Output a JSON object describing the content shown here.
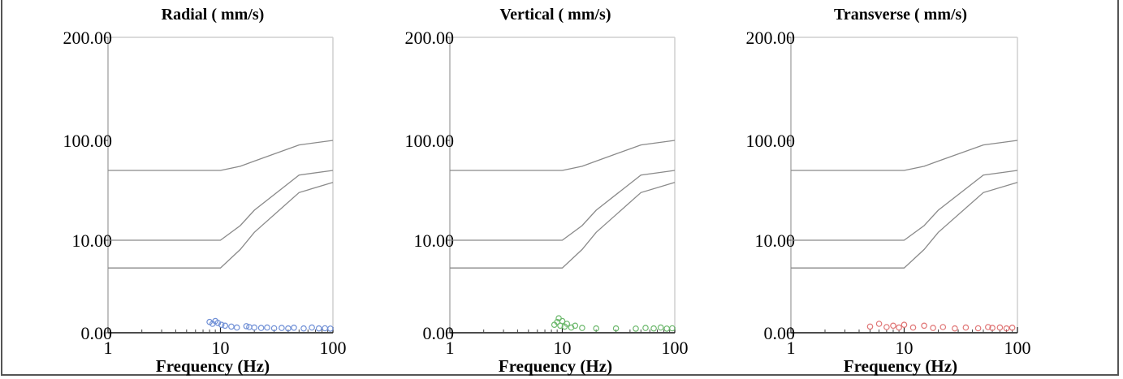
{
  "chart_data": [
    {
      "type": "scatter",
      "title": "Radial ( mm/s)",
      "xlabel": "Frequency (Hz)",
      "x_tick_labels": [
        "1",
        "10",
        "100"
      ],
      "y_tick_labels": [
        "0.00",
        "10.00",
        "100.00",
        "200.00"
      ],
      "x_scale": "log",
      "xlim": [
        1,
        100
      ],
      "color": "#6f8fd6",
      "limit_lines": [
        {
          "x": [
            1,
            10,
            15,
            20,
            50,
            100
          ],
          "y": [
            50,
            50,
            55,
            62,
            90,
            100
          ]
        },
        {
          "x": [
            1,
            10,
            15,
            20,
            50,
            100
          ],
          "y": [
            10,
            10,
            14,
            20,
            45,
            50
          ]
        },
        {
          "x": [
            1,
            10,
            15,
            20,
            50,
            100
          ],
          "y": [
            7,
            7,
            9,
            12,
            30,
            38
          ]
        }
      ],
      "points": [
        {
          "x": 8.0,
          "y": 0.9
        },
        {
          "x": 8.5,
          "y": 0.7
        },
        {
          "x": 9.0,
          "y": 1.0
        },
        {
          "x": 9.5,
          "y": 0.8
        },
        {
          "x": 10.2,
          "y": 0.6
        },
        {
          "x": 11.0,
          "y": 0.5
        },
        {
          "x": 12.5,
          "y": 0.4
        },
        {
          "x": 14.0,
          "y": 0.3
        },
        {
          "x": 17.0,
          "y": 0.45
        },
        {
          "x": 18.0,
          "y": 0.35
        },
        {
          "x": 20.0,
          "y": 0.3
        },
        {
          "x": 23.0,
          "y": 0.25
        },
        {
          "x": 26.0,
          "y": 0.3
        },
        {
          "x": 30.0,
          "y": 0.22
        },
        {
          "x": 35.0,
          "y": 0.25
        },
        {
          "x": 40.0,
          "y": 0.2
        },
        {
          "x": 45.0,
          "y": 0.28
        },
        {
          "x": 55.0,
          "y": 0.2
        },
        {
          "x": 65.0,
          "y": 0.3
        },
        {
          "x": 75.0,
          "y": 0.2
        },
        {
          "x": 85.0,
          "y": 0.22
        },
        {
          "x": 95.0,
          "y": 0.18
        }
      ]
    },
    {
      "type": "scatter",
      "title": "Vertical ( mm/s)",
      "xlabel": "Frequency (Hz)",
      "x_tick_labels": [
        "1",
        "10",
        "100"
      ],
      "y_tick_labels": [
        "0.00",
        "10.00",
        "100.00",
        "200.00"
      ],
      "x_scale": "log",
      "xlim": [
        1,
        100
      ],
      "color": "#6cb86c",
      "limit_lines": [
        {
          "x": [
            1,
            10,
            15,
            20,
            50,
            100
          ],
          "y": [
            50,
            50,
            55,
            62,
            90,
            100
          ]
        },
        {
          "x": [
            1,
            10,
            15,
            20,
            50,
            100
          ],
          "y": [
            10,
            10,
            14,
            20,
            45,
            50
          ]
        },
        {
          "x": [
            1,
            10,
            15,
            20,
            50,
            100
          ],
          "y": [
            7,
            7,
            9,
            12,
            30,
            38
          ]
        }
      ],
      "points": [
        {
          "x": 8.5,
          "y": 0.6
        },
        {
          "x": 9.0,
          "y": 0.9
        },
        {
          "x": 9.3,
          "y": 1.3
        },
        {
          "x": 9.6,
          "y": 0.5
        },
        {
          "x": 10.0,
          "y": 1.0
        },
        {
          "x": 10.5,
          "y": 0.4
        },
        {
          "x": 11.0,
          "y": 0.7
        },
        {
          "x": 12.0,
          "y": 0.3
        },
        {
          "x": 13.0,
          "y": 0.5
        },
        {
          "x": 15.0,
          "y": 0.25
        },
        {
          "x": 20.0,
          "y": 0.2
        },
        {
          "x": 30.0,
          "y": 0.2
        },
        {
          "x": 45.0,
          "y": 0.18
        },
        {
          "x": 55.0,
          "y": 0.25
        },
        {
          "x": 65.0,
          "y": 0.2
        },
        {
          "x": 75.0,
          "y": 0.3
        },
        {
          "x": 85.0,
          "y": 0.18
        },
        {
          "x": 95.0,
          "y": 0.22
        }
      ]
    },
    {
      "type": "scatter",
      "title": "Transverse ( mm/s)",
      "xlabel": "Frequency (Hz)",
      "x_tick_labels": [
        "1",
        "10",
        "100"
      ],
      "y_tick_labels": [
        "0.00",
        "10.00",
        "100.00",
        "200.00"
      ],
      "x_scale": "log",
      "xlim": [
        1,
        100
      ],
      "color": "#e07575",
      "limit_lines": [
        {
          "x": [
            1,
            10,
            15,
            20,
            50,
            100
          ],
          "y": [
            50,
            50,
            55,
            62,
            90,
            100
          ]
        },
        {
          "x": [
            1,
            10,
            15,
            20,
            50,
            100
          ],
          "y": [
            10,
            10,
            14,
            20,
            45,
            50
          ]
        },
        {
          "x": [
            1,
            10,
            15,
            20,
            50,
            100
          ],
          "y": [
            7,
            7,
            9,
            12,
            30,
            38
          ]
        }
      ],
      "points": [
        {
          "x": 5.0,
          "y": 0.4
        },
        {
          "x": 6.0,
          "y": 0.7
        },
        {
          "x": 7.0,
          "y": 0.35
        },
        {
          "x": 8.0,
          "y": 0.5
        },
        {
          "x": 9.0,
          "y": 0.3
        },
        {
          "x": 10.0,
          "y": 0.6
        },
        {
          "x": 12.0,
          "y": 0.3
        },
        {
          "x": 15.0,
          "y": 0.5
        },
        {
          "x": 18.0,
          "y": 0.25
        },
        {
          "x": 22.0,
          "y": 0.35
        },
        {
          "x": 28.0,
          "y": 0.2
        },
        {
          "x": 35.0,
          "y": 0.3
        },
        {
          "x": 45.0,
          "y": 0.22
        },
        {
          "x": 55.0,
          "y": 0.35
        },
        {
          "x": 60.0,
          "y": 0.25
        },
        {
          "x": 70.0,
          "y": 0.3
        },
        {
          "x": 80.0,
          "y": 0.2
        },
        {
          "x": 90.0,
          "y": 0.28
        }
      ]
    }
  ]
}
